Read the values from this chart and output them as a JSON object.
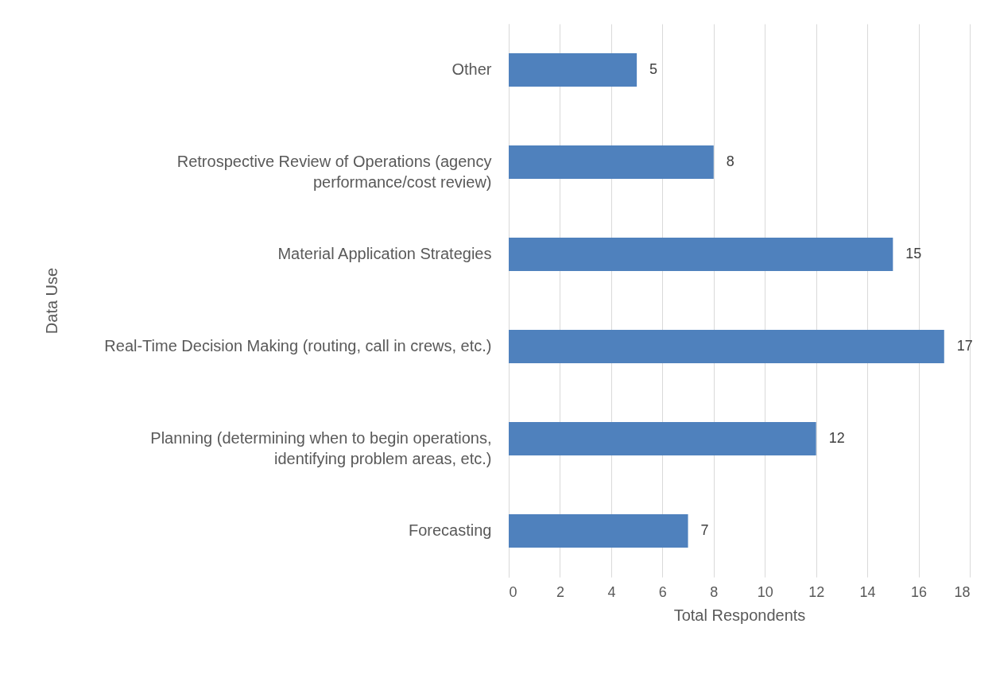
{
  "chart_data": {
    "type": "bar",
    "orientation": "horizontal",
    "xlabel": "Total Respondents",
    "ylabel": "Data Use",
    "categories": [
      "Other",
      "Retrospective Review of Operations (agency performance/cost review)",
      "Material Application Strategies",
      "Real-Time Decision Making (routing, call in crews, etc.)",
      "Planning (determining when to begin operations, identifying problem areas, etc.)",
      "Forecasting"
    ],
    "values": [
      5,
      8,
      15,
      17,
      12,
      7
    ],
    "color": "#4f81bd",
    "xlim": [
      0,
      18
    ],
    "xticks": [
      0,
      2,
      4,
      6,
      8,
      10,
      12,
      14,
      16,
      18
    ],
    "grid": "x",
    "data_labels": true
  }
}
